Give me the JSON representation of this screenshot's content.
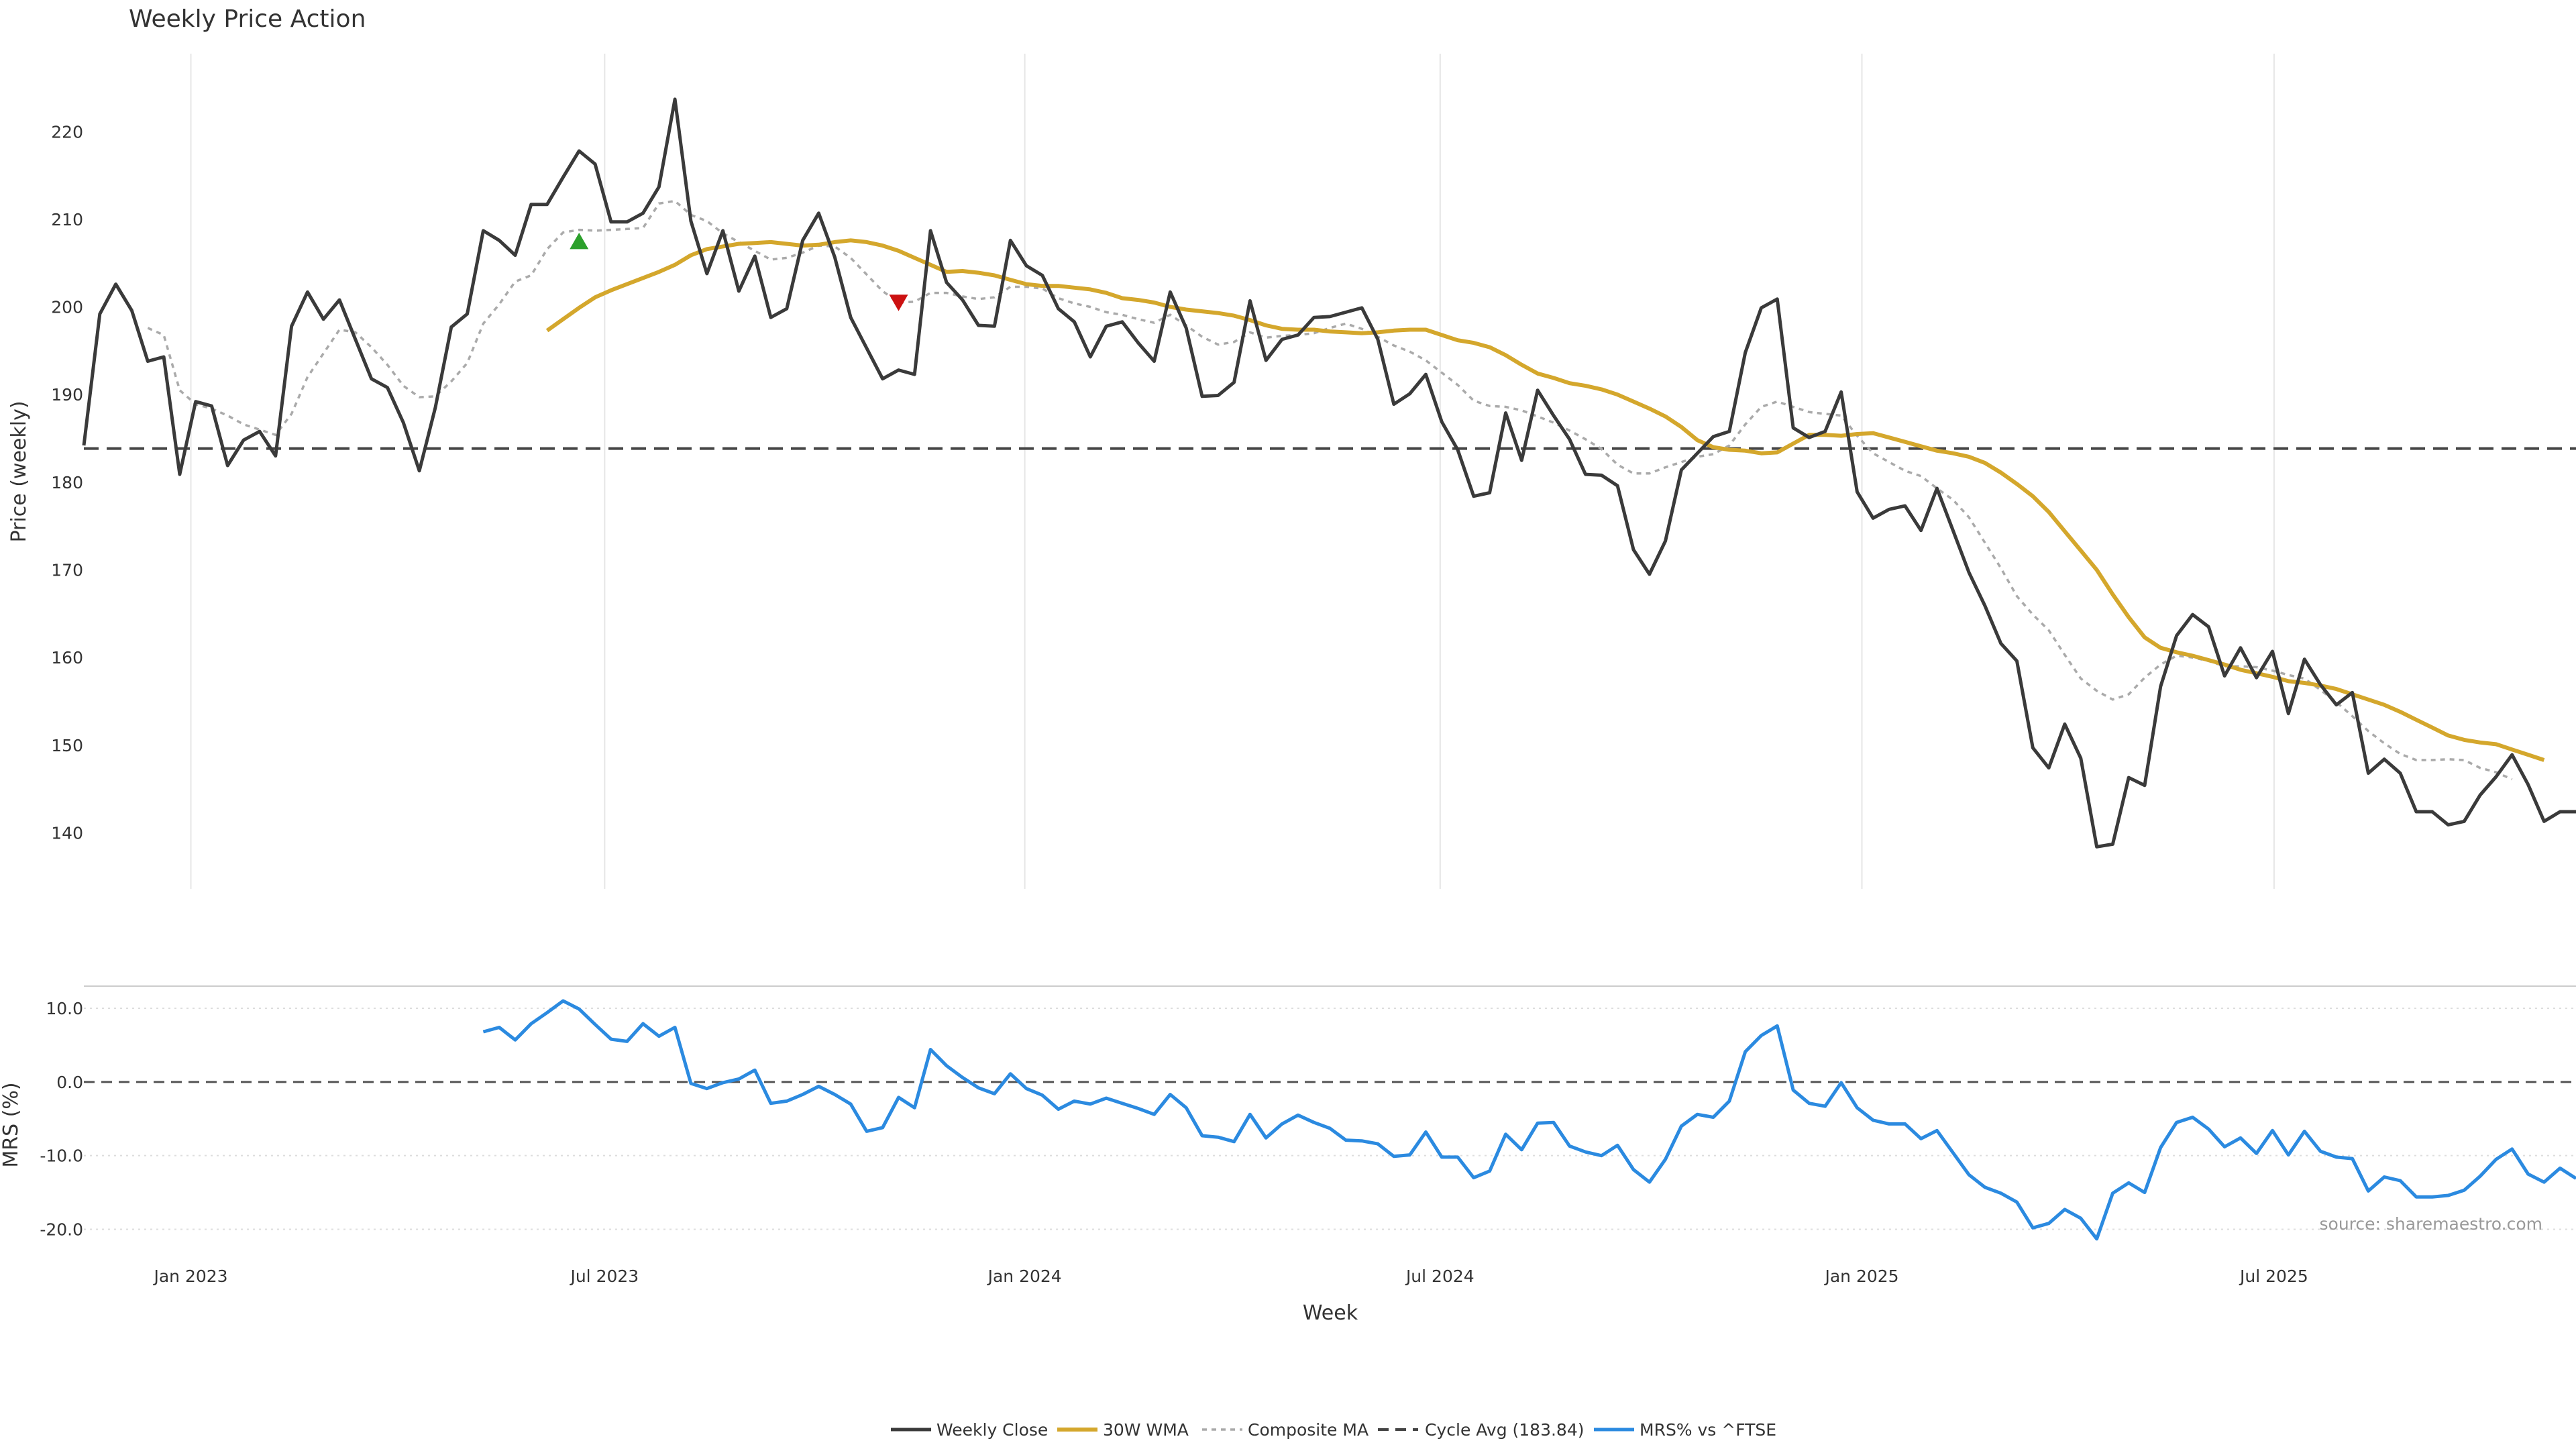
{
  "colors": {
    "close": "#3a3a3a",
    "wma": "#d4a72c",
    "composite": "#aaaaaa",
    "cycle": "#444444",
    "mrs": "#2b8ae0",
    "buy_marker": "#2ca02c",
    "sell_marker": "#cc1111",
    "grid": "#e6e6e6"
  },
  "chart_data": {
    "type": "line",
    "title": "Weekly Price Action",
    "xlabel": "Week",
    "x_start": "2022-11-14",
    "x_tick_labels": [
      "Jan 2023",
      "Jul 2023",
      "Jan 2024",
      "Jul 2024",
      "Jan 2025",
      "Jul 2025"
    ],
    "x_tick_weeks": [
      6.7,
      32.6,
      58.9,
      84.9,
      111.3,
      137.1
    ],
    "price_panel": {
      "ylabel": "Price (weekly)",
      "ylim": [
        133.6,
        228.9
      ],
      "yticks": [
        "140",
        "150",
        "160",
        "170",
        "180",
        "190",
        "200",
        "210",
        "220"
      ],
      "ytick_values": [
        140,
        150,
        160,
        170,
        180,
        190,
        200,
        210,
        220
      ],
      "series": [
        {
          "name": "Weekly Close",
          "values": [
            184.2,
            199.2,
            202.6,
            199.6,
            193.8,
            194.3,
            180.9,
            189.2,
            188.7,
            181.9,
            184.8,
            185.8,
            183.0,
            197.8,
            201.7,
            198.6,
            200.8,
            196.3,
            191.8,
            190.8,
            186.8,
            181.3,
            188.5,
            197.7,
            199.2,
            208.7,
            207.6,
            205.9,
            211.7,
            211.7,
            214.8,
            217.8,
            216.3,
            209.7,
            209.7,
            210.7,
            213.7,
            223.7,
            209.8,
            203.8,
            208.7,
            201.8,
            205.8,
            198.8,
            199.8,
            207.6,
            210.7,
            205.7,
            198.8,
            195.3,
            191.8,
            192.8,
            192.3,
            208.7,
            202.8,
            200.8,
            197.9,
            197.8,
            207.6,
            204.7,
            203.6,
            199.8,
            198.3,
            194.3,
            197.8,
            198.3,
            195.9,
            193.8,
            201.7,
            197.6,
            189.8,
            189.9,
            191.4,
            200.7,
            193.9,
            196.3,
            196.8,
            198.8,
            198.9,
            199.4,
            199.9,
            196.3,
            188.9,
            190.1,
            192.3,
            186.9,
            183.7,
            178.4,
            178.8,
            187.9,
            182.5,
            190.5,
            187.6,
            184.9,
            180.9,
            180.8,
            179.6,
            172.3,
            169.5,
            173.3,
            181.4,
            183.3,
            185.2,
            185.8,
            194.8,
            199.9,
            200.9,
            186.2,
            185.1,
            185.8,
            190.3,
            178.9,
            175.9,
            176.9,
            177.3,
            174.5,
            179.3,
            174.5,
            169.7,
            165.9,
            161.6,
            159.6,
            149.7,
            147.4,
            152.4,
            148.5,
            138.4,
            138.7,
            146.3,
            145.4,
            156.7,
            162.5,
            164.9,
            163.5,
            157.9,
            161.1,
            157.7,
            160.7,
            153.6,
            159.8,
            156.9,
            154.6,
            156.0,
            146.8,
            148.4,
            146.8,
            142.4,
            142.4,
            140.9,
            141.3,
            144.3,
            146.4,
            148.9,
            145.5,
            141.3,
            142.4,
            142.4
          ]
        },
        {
          "name": "30W WMA",
          "start_index": 29,
          "values": [
            197.3,
            198.6,
            199.9,
            201.1,
            201.9,
            202.6,
            203.3,
            204.0,
            204.8,
            205.9,
            206.6,
            206.9,
            207.2,
            207.3,
            207.4,
            207.2,
            207.0,
            207.1,
            207.4,
            207.6,
            207.4,
            207.0,
            206.4,
            205.6,
            204.8,
            204.0,
            204.1,
            203.9,
            203.6,
            203.1,
            202.6,
            202.4,
            202.4,
            202.2,
            202.0,
            201.6,
            201.0,
            200.8,
            200.5,
            200.0,
            199.7,
            199.5,
            199.3,
            199.0,
            198.5,
            197.9,
            197.5,
            197.4,
            197.4,
            197.2,
            197.1,
            197.0,
            197.1,
            197.3,
            197.4,
            197.4,
            196.8,
            196.2,
            195.9,
            195.4,
            194.5,
            193.4,
            192.4,
            191.9,
            191.3,
            191.0,
            190.6,
            190.0,
            189.2,
            188.4,
            187.5,
            186.3,
            184.8,
            184.0,
            183.7,
            183.6,
            183.3,
            183.4,
            184.4,
            185.4,
            185.4,
            185.3,
            185.5,
            185.6,
            185.1,
            184.6,
            184.1,
            183.6,
            183.3,
            182.9,
            182.2,
            181.1,
            179.8,
            178.4,
            176.6,
            174.4,
            172.2,
            170.0,
            167.2,
            164.6,
            162.3,
            161.1,
            160.6,
            160.2,
            159.7,
            159.2,
            158.6,
            158.2,
            157.8,
            157.3,
            157.1,
            156.8,
            156.4,
            155.8,
            155.2,
            154.6,
            153.8,
            152.9,
            152.0,
            151.1,
            150.6,
            150.3,
            150.1,
            149.5,
            148.9,
            148.3
          ]
        },
        {
          "name": "Composite MA",
          "values": [
            null,
            null,
            null,
            null,
            197.6,
            196.8,
            190.5,
            188.9,
            188.4,
            187.6,
            186.6,
            186.0,
            185.4,
            187.8,
            192.0,
            194.7,
            197.4,
            197.1,
            195.4,
            193.4,
            191.0,
            189.7,
            189.8,
            191.5,
            193.6,
            198.1,
            200.3,
            202.9,
            203.6,
            206.6,
            208.5,
            208.8,
            208.7,
            208.8,
            208.9,
            209.0,
            211.8,
            212.1,
            210.5,
            209.8,
            208.4,
            207.4,
            206.4,
            205.4,
            205.6,
            206.2,
            207.0,
            206.9,
            205.6,
            203.7,
            201.8,
            200.5,
            200.6,
            201.6,
            201.6,
            201.2,
            200.9,
            201.1,
            202.3,
            202.3,
            202.1,
            201.0,
            200.4,
            200.0,
            199.4,
            199.1,
            198.6,
            198.2,
            199.1,
            197.9,
            196.6,
            195.7,
            196.0,
            197.1,
            196.5,
            196.7,
            196.8,
            197.0,
            197.6,
            198.1,
            197.5,
            196.6,
            195.6,
            194.9,
            193.9,
            192.5,
            191.1,
            189.3,
            188.7,
            188.6,
            188.2,
            187.5,
            186.8,
            185.9,
            184.9,
            183.8,
            182.0,
            181.0,
            181.0,
            181.7,
            182.3,
            182.9,
            183.2,
            184.2,
            186.6,
            188.6,
            189.2,
            188.6,
            188.0,
            187.8,
            187.6,
            185.3,
            183.3,
            182.3,
            181.3,
            180.7,
            179.3,
            178.0,
            176.0,
            173.1,
            170.2,
            167.0,
            164.9,
            163.1,
            160.3,
            157.6,
            156.2,
            155.2,
            155.8,
            157.7,
            159.2,
            160.2,
            160.0,
            159.6,
            159.0,
            159.0,
            158.9,
            158.5,
            158.0,
            157.6,
            156.3,
            154.9,
            153.3,
            151.6,
            150.2,
            149.0,
            148.3,
            148.3,
            148.4,
            148.3,
            147.4,
            146.9,
            146.1
          ]
        }
      ],
      "reference_line": {
        "name": "Cycle Avg (183.84)",
        "value": 183.84
      },
      "markers": [
        {
          "type": "buy",
          "week": 31,
          "value": 207.4
        },
        {
          "type": "sell",
          "week": 51,
          "value": 200.6
        }
      ]
    },
    "mrs_panel": {
      "ylabel": "MRS (%)",
      "ylim": [
        -22.5,
        13.0
      ],
      "yticks": [
        "10.0",
        "0.0",
        "-10.0",
        "-20.0"
      ],
      "ytick_values": [
        10,
        0,
        -10,
        -20
      ],
      "reference_value": 0,
      "series": {
        "name": "MRS% vs ^FTSE",
        "start_index": 25,
        "values": [
          6.8,
          7.4,
          5.7,
          7.9,
          9.4,
          11.0,
          9.9,
          7.8,
          5.8,
          5.5,
          7.9,
          6.2,
          7.4,
          -0.2,
          -0.9,
          -0.1,
          0.4,
          1.6,
          -2.9,
          -2.6,
          -1.7,
          -0.6,
          -1.7,
          -3.0,
          -6.7,
          -6.2,
          -2.1,
          -3.5,
          4.4,
          2.2,
          0.6,
          -0.8,
          -1.6,
          1.1,
          -0.9,
          -1.8,
          -3.7,
          -2.6,
          -3.0,
          -2.2,
          -2.9,
          -3.6,
          -4.4,
          -1.7,
          -3.5,
          -7.3,
          -7.5,
          -8.1,
          -4.4,
          -7.6,
          -5.7,
          -4.5,
          -5.5,
          -6.3,
          -7.9,
          -8.0,
          -8.4,
          -10.1,
          -9.9,
          -6.8,
          -10.2,
          -10.2,
          -13.0,
          -12.1,
          -7.1,
          -9.2,
          -5.6,
          -5.5,
          -8.7,
          -9.5,
          -10.0,
          -8.6,
          -11.9,
          -13.6,
          -10.5,
          -6.0,
          -4.4,
          -4.8,
          -2.6,
          4.1,
          6.3,
          7.6,
          -1.1,
          -2.9,
          -3.3,
          -0.1,
          -3.5,
          -5.2,
          -5.7,
          -5.7,
          -7.7,
          -6.6,
          -9.6,
          -12.6,
          -14.3,
          -15.1,
          -16.3,
          -19.8,
          -19.2,
          -17.3,
          -18.5,
          -21.3,
          -15.1,
          -13.7,
          -15.0,
          -8.9,
          -5.5,
          -4.8,
          -6.4,
          -8.8,
          -7.6,
          -9.7,
          -6.6,
          -9.9,
          -6.7,
          -9.4,
          -10.2,
          -10.4,
          -14.8,
          -12.9,
          -13.4,
          -15.6,
          -15.6,
          -15.4,
          -14.7,
          -12.8,
          -10.5,
          -9.1,
          -12.5,
          -13.6,
          -11.7,
          -13.1
        ]
      }
    },
    "legend": {
      "placement": "bottom-center",
      "entries": [
        "Weekly Close",
        "30W WMA",
        "Composite MA",
        "Cycle Avg (183.84)",
        "MRS% vs ^FTSE"
      ]
    },
    "source": "source: sharemaestro.com"
  }
}
